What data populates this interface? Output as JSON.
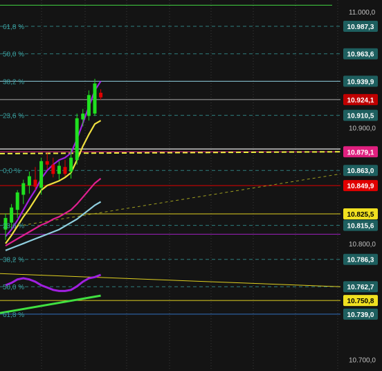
{
  "chart_data": {
    "type": "candlestick",
    "y_axis": {
      "min": 10690,
      "max": 11010,
      "ticks": [
        11000.0,
        10900.0,
        10800.0,
        10700.0
      ],
      "tick_labels": [
        "11.000,0",
        "10.900,0",
        "10.800,0",
        "10.700,0"
      ],
      "label_color": "#c0c0c0"
    },
    "price_levels": [
      {
        "value": 10987.3,
        "label": "10.987,3",
        "bg": "#1e5f5f",
        "fg": "#ffffff",
        "line": "#2e7f7f",
        "dash": true
      },
      {
        "value": 10963.6,
        "label": "10.963,6",
        "bg": "#1e5f5f",
        "fg": "#ffffff",
        "line": "#2e7f7f",
        "dash": true
      },
      {
        "value": 10939.9,
        "label": "10.939,9",
        "bg": "#1e5f5f",
        "fg": "#ffffff",
        "line": "#8fd0e0",
        "dash": false
      },
      {
        "value": 10924.1,
        "label": "10.924,1",
        "bg": "#c00000",
        "fg": "#ffffff",
        "line": "#aaaaaa",
        "dash": false
      },
      {
        "value": 10910.5,
        "label": "10.910,5",
        "bg": "#1e5f5f",
        "fg": "#ffffff",
        "line": "#2e7f7f",
        "dash": true
      },
      {
        "value": 10879.1,
        "label": "10.879,1",
        "bg": "#e0207f",
        "fg": "#ffffff",
        "line": "#e0207f",
        "dash": false
      },
      {
        "value": 10863.0,
        "label": "10.863,0",
        "bg": "#1e5f5f",
        "fg": "#ffffff",
        "line": "#2e7f7f",
        "dash": true
      },
      {
        "value": 10849.9,
        "label": "10.849,9",
        "bg": "#e00000",
        "fg": "#ffffff",
        "line": "#e00000",
        "dash": false
      },
      {
        "value": 10825.5,
        "label": "10.825,5",
        "bg": "#f0e020",
        "fg": "#000000",
        "line": "#e0d020",
        "dash": false
      },
      {
        "value": 10815.6,
        "label": "10.815,6",
        "bg": "#1e5f5f",
        "fg": "#ffffff",
        "line": "#2e7f7f",
        "dash": true
      },
      {
        "value": 10786.3,
        "label": "10.786,3",
        "bg": "#1e5f5f",
        "fg": "#ffffff",
        "line": "#2e7f7f",
        "dash": true
      },
      {
        "value": 10762.7,
        "label": "10.762,7",
        "bg": "#1e5f5f",
        "fg": "#ffffff",
        "line": "#2e7f7f",
        "dash": true
      },
      {
        "value": 10750.8,
        "label": "10.750,8",
        "bg": "#f0e020",
        "fg": "#000000",
        "line": "#e0d020",
        "dash": false
      },
      {
        "value": 10739.0,
        "label": "10.739,0",
        "bg": "#1e5f5f",
        "fg": "#ffffff",
        "line": "#3070c0",
        "dash": false
      }
    ],
    "fib_labels": [
      {
        "value": 10987.3,
        "label": "61,8 %"
      },
      {
        "value": 10963.6,
        "label": "50,0 %"
      },
      {
        "value": 10939.9,
        "label": "38,2 %"
      },
      {
        "value": 10910.5,
        "label": "23,6 %"
      },
      {
        "value": 10863.0,
        "label": "0,0 %"
      },
      {
        "value": 10815.6,
        "label": "23,6 %"
      },
      {
        "value": 10786.3,
        "label": "38,2 %"
      },
      {
        "value": 10762.7,
        "label": "50,0 %"
      },
      {
        "value": 10739.0,
        "label": "61,8 %"
      }
    ],
    "other_lines": [
      {
        "name": "top-green-line",
        "value": 11005.5,
        "color": "#40d040"
      },
      {
        "name": "magenta-level",
        "value": 10808.0,
        "color": "#a020c0"
      }
    ],
    "candles": [
      {
        "o": 10812,
        "h": 10826,
        "l": 10803,
        "c": 10822
      },
      {
        "o": 10818,
        "h": 10834,
        "l": 10812,
        "c": 10831
      },
      {
        "o": 10829,
        "h": 10846,
        "l": 10822,
        "c": 10844
      },
      {
        "o": 10842,
        "h": 10855,
        "l": 10834,
        "c": 10852
      },
      {
        "o": 10850,
        "h": 10862,
        "l": 10843,
        "c": 10858
      },
      {
        "o": 10855,
        "h": 10866,
        "l": 10846,
        "c": 10849
      },
      {
        "o": 10848,
        "h": 10874,
        "l": 10842,
        "c": 10871
      },
      {
        "o": 10871,
        "h": 10878,
        "l": 10864,
        "c": 10868
      },
      {
        "o": 10868,
        "h": 10874,
        "l": 10857,
        "c": 10860
      },
      {
        "o": 10860,
        "h": 10871,
        "l": 10855,
        "c": 10867
      },
      {
        "o": 10866,
        "h": 10872,
        "l": 10858,
        "c": 10860
      },
      {
        "o": 10862,
        "h": 10882,
        "l": 10856,
        "c": 10874
      },
      {
        "o": 10872,
        "h": 10912,
        "l": 10868,
        "c": 10908
      },
      {
        "o": 10907,
        "h": 10916,
        "l": 10901,
        "c": 10912
      },
      {
        "o": 10910,
        "h": 10932,
        "l": 10906,
        "c": 10928
      },
      {
        "o": 10912,
        "h": 10942,
        "l": 10910,
        "c": 10938
      },
      {
        "o": 10930,
        "h": 10933,
        "l": 10924,
        "c": 10926
      }
    ],
    "ma_series": [
      {
        "color": "#a020e0",
        "values": [
          10806,
          10812,
          10820,
          10829,
          10838,
          10846,
          10856,
          10863,
          10868,
          10872,
          10874,
          10878,
          10890,
          10904,
          10918,
          10932,
          10940
        ]
      },
      {
        "color": "#f0e040",
        "values": [
          10800,
          10807,
          10815,
          10823,
          10830,
          10838,
          10846,
          10850,
          10852,
          10854,
          10857,
          10861,
          10872,
          10884,
          10894,
          10903,
          10906
        ]
      },
      {
        "color": "#e02090",
        "values": [
          10798,
          10801,
          10804,
          10807,
          10810,
          10813,
          10816,
          10818,
          10821,
          10823,
          10826,
          10829,
          10834,
          10840,
          10846,
          10852,
          10856
        ]
      },
      {
        "color": "#90d0e0",
        "values": [
          10794,
          10796,
          10798,
          10800,
          10802,
          10804,
          10806,
          10808,
          10810,
          10812,
          10815,
          10818,
          10821,
          10825,
          10829,
          10833,
          10836
        ]
      }
    ],
    "oscillator": {
      "values": [
        10764,
        10766,
        10769,
        10770,
        10769,
        10767,
        10764,
        10762,
        10760,
        10759,
        10759,
        10760,
        10763,
        10767,
        10770,
        10771,
        10773
      ],
      "color": "#a020e0"
    },
    "trend_lines": [
      {
        "name": "green-trend",
        "x0": 0,
        "y0": 10740,
        "x1": 16,
        "y1": 10755,
        "color": "#40e040"
      },
      {
        "name": "yellow-trend",
        "x0": 0,
        "y0": 10774,
        "x1": 20,
        "y1": 10762.7,
        "color": "#e0d020"
      },
      {
        "name": "dashed-olive-trend",
        "x0": 2,
        "y0": 10815,
        "x1": 20,
        "y1": 10860,
        "color": "#a0a020"
      },
      {
        "name": "yellow-white-dashed",
        "x0": 0,
        "y0": 10877.5,
        "x1": 20,
        "y1": 10879.1,
        "color": "#f0f040"
      }
    ],
    "colors": {
      "background": "#141414",
      "grid": "#2a2a2a",
      "up_candle": "#20e020",
      "down_candle": "#e00000",
      "fib_text": "#3aa0a0"
    }
  }
}
